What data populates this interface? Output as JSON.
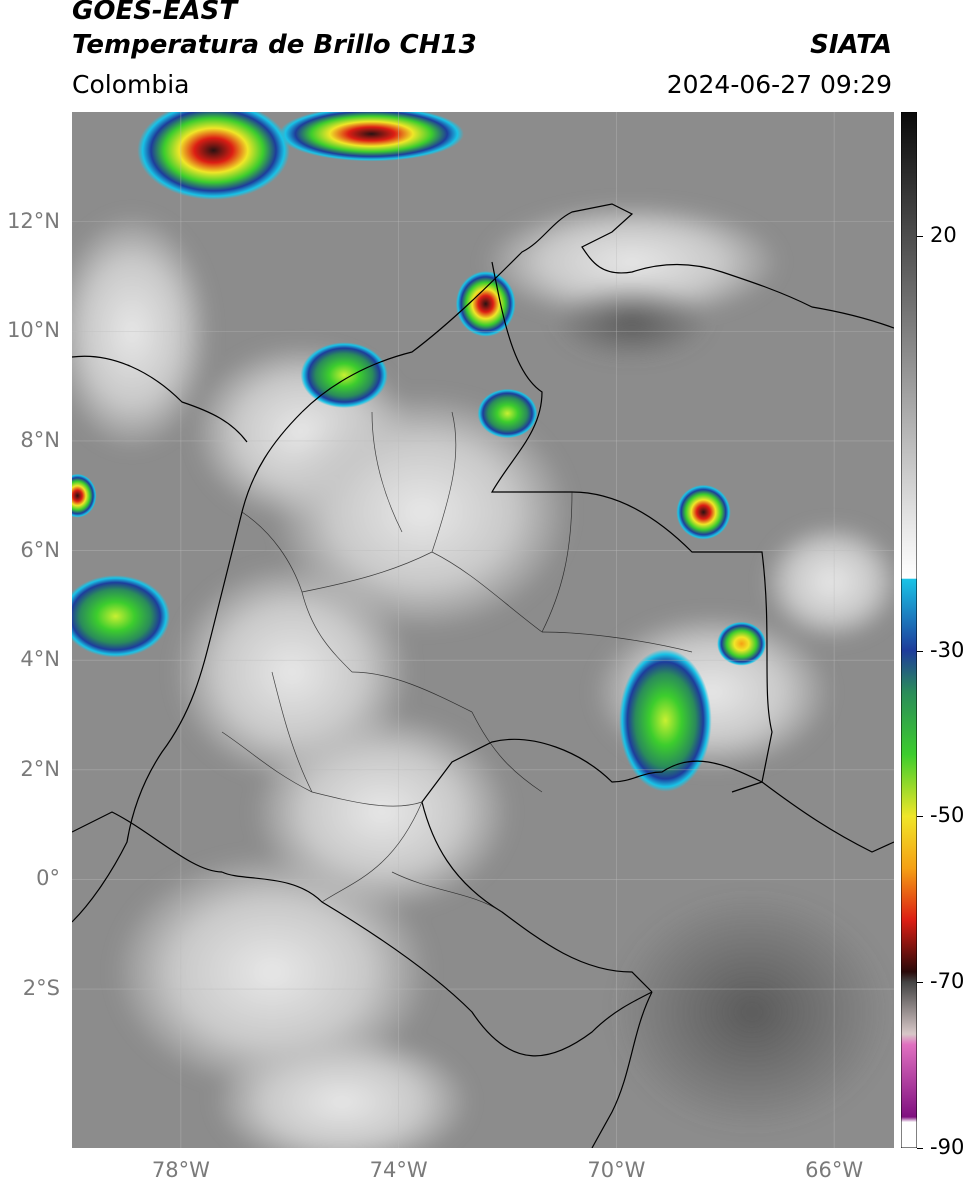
{
  "header": {
    "satellite": "GOES-EAST",
    "product": "Temperatura de Brillo CH13",
    "region": "Colombia",
    "organization": "SIATA",
    "timestamp": "2024-06-27 09:29"
  },
  "map": {
    "lon_range": [
      -80,
      -64.9
    ],
    "lat_range": [
      -4.9,
      14
    ],
    "lat_ticks": [
      {
        "value": 12,
        "label": "12°N"
      },
      {
        "value": 10,
        "label": "10°N"
      },
      {
        "value": 8,
        "label": "8°N"
      },
      {
        "value": 6,
        "label": "6°N"
      },
      {
        "value": 4,
        "label": "4°N"
      },
      {
        "value": 2,
        "label": "2°N"
      },
      {
        "value": 0,
        "label": "0°"
      },
      {
        "value": -2,
        "label": "2°S"
      }
    ],
    "lon_ticks": [
      {
        "value": -78,
        "label": "78°W"
      },
      {
        "value": -74,
        "label": "74°W"
      },
      {
        "value": -70,
        "label": "70°W"
      },
      {
        "value": -66,
        "label": "66°W"
      }
    ],
    "grid": true,
    "background_color": "#8c8c8c",
    "colors": {
      "cold_cyan": "#19c3e6",
      "blue": "#1e3c9b",
      "green": "#3ccd2d",
      "yellow": "#f0e628",
      "red": "#dc1e14",
      "dark": "#2a1212"
    },
    "storm_cells": [
      {
        "lon": -77.4,
        "lat": 13.3,
        "rx": 1.4,
        "ry": 0.9,
        "core": "red"
      },
      {
        "lon": -74.5,
        "lat": 13.6,
        "rx": 1.7,
        "ry": 0.5,
        "core": "red"
      },
      {
        "lon": -72.4,
        "lat": 10.5,
        "rx": 0.55,
        "ry": 0.6,
        "core": "red"
      },
      {
        "lon": -75.0,
        "lat": 9.2,
        "rx": 0.8,
        "ry": 0.6,
        "core": "green"
      },
      {
        "lon": -72.0,
        "lat": 8.5,
        "rx": 0.55,
        "ry": 0.45,
        "core": "green"
      },
      {
        "lon": -68.4,
        "lat": 6.7,
        "rx": 0.5,
        "ry": 0.5,
        "core": "red"
      },
      {
        "lon": -67.7,
        "lat": 4.3,
        "rx": 0.45,
        "ry": 0.4,
        "core": "yellow"
      },
      {
        "lon": -69.1,
        "lat": 2.9,
        "rx": 0.85,
        "ry": 1.3,
        "core": "green"
      },
      {
        "lon": -79.2,
        "lat": 4.8,
        "rx": 1.0,
        "ry": 0.75,
        "core": "green"
      },
      {
        "lon": -79.9,
        "lat": 7.0,
        "rx": 0.35,
        "ry": 0.4,
        "core": "red"
      }
    ]
  },
  "colorbar": {
    "vmin": -90,
    "vmax": 35,
    "ticks": [
      {
        "value": 20,
        "label": "20"
      },
      {
        "value": -30,
        "label": "-30"
      },
      {
        "value": -50,
        "label": "-50"
      },
      {
        "value": -70,
        "label": "-70"
      },
      {
        "value": -90,
        "label": "-90"
      }
    ]
  }
}
